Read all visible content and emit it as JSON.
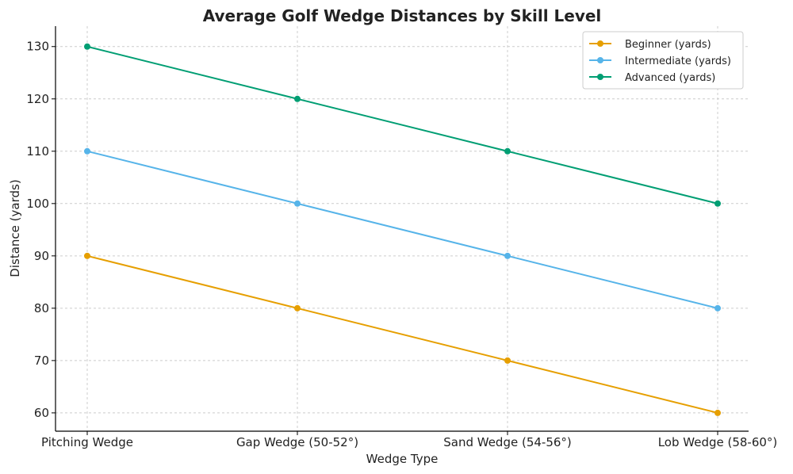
{
  "chart_data": {
    "type": "line",
    "title": "Average Golf Wedge Distances by Skill Level",
    "xlabel": "Wedge Type",
    "ylabel": "Distance (yards)",
    "categories": [
      "Pitching Wedge",
      "Gap Wedge (50-52°)",
      "Sand Wedge (54-56°)",
      "Lob Wedge (58-60°)"
    ],
    "ylim": [
      56.5,
      133.9
    ],
    "yticks": [
      60,
      70,
      80,
      90,
      100,
      110,
      120,
      130
    ],
    "grid": true,
    "legend_position": "top-right",
    "series": [
      {
        "name": "Beginner (yards)",
        "values": [
          90,
          80,
          70,
          60
        ],
        "color": "#E69F00"
      },
      {
        "name": "Intermediate (yards)",
        "values": [
          110,
          100,
          90,
          80
        ],
        "color": "#56B4E9"
      },
      {
        "name": "Advanced (yards)",
        "values": [
          130,
          120,
          110,
          100
        ],
        "color": "#009E73"
      }
    ]
  }
}
